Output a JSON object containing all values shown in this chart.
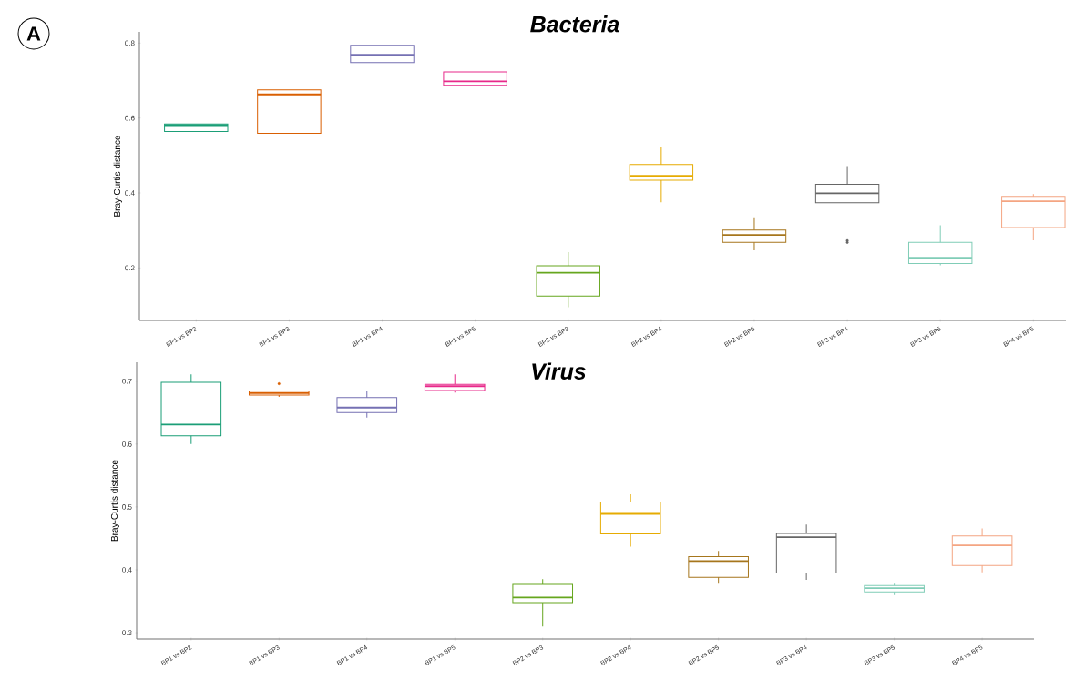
{
  "chart_data": [
    {
      "type": "box",
      "title": "Bacteria",
      "ylabel": "Bray-Curtis distance",
      "annotations": [
        "A"
      ],
      "categories": [
        "BP1 vs BP2",
        "BP1 vs BP3",
        "BP1 vs BP4",
        "BP1 vs BP5",
        "BP2 vs BP3",
        "BP2 vs BP4",
        "BP2 vs BP5",
        "BP3 vs BP4",
        "BP3 vs BP5",
        "BP4 vs BP5"
      ],
      "colors": [
        "#1b9e77",
        "#d95f02",
        "#7570b3",
        "#e7298a",
        "#66a61e",
        "#e6ab02",
        "#a6761d",
        "#666666",
        "#80cdb7",
        "#f4a582"
      ],
      "boxes": [
        {
          "low": 0.564,
          "q1": 0.564,
          "median": 0.581,
          "q3": 0.584,
          "high": 0.584
        },
        {
          "low": 0.559,
          "q1": 0.559,
          "median": 0.663,
          "q3": 0.675,
          "high": 0.675
        },
        {
          "low": 0.748,
          "q1": 0.748,
          "median": 0.769,
          "q3": 0.794,
          "high": 0.794
        },
        {
          "low": 0.687,
          "q1": 0.687,
          "median": 0.698,
          "q3": 0.723,
          "high": 0.723
        },
        {
          "low": 0.095,
          "q1": 0.125,
          "median": 0.187,
          "q3": 0.206,
          "high": 0.242
        },
        {
          "low": 0.375,
          "q1": 0.434,
          "median": 0.446,
          "q3": 0.476,
          "high": 0.523
        },
        {
          "low": 0.247,
          "q1": 0.268,
          "median": 0.288,
          "q3": 0.301,
          "high": 0.335
        },
        {
          "low": 0.374,
          "q1": 0.374,
          "median": 0.399,
          "q3": 0.423,
          "high": 0.472,
          "outliers": [
            0.273,
            0.268
          ]
        },
        {
          "low": 0.207,
          "q1": 0.212,
          "median": 0.227,
          "q3": 0.268,
          "high": 0.314
        },
        {
          "low": 0.274,
          "q1": 0.308,
          "median": 0.378,
          "q3": 0.391,
          "high": 0.397
        }
      ],
      "ylim": [
        0.06,
        0.83
      ],
      "yticks": [
        0.2,
        0.4,
        0.6,
        0.8
      ]
    },
    {
      "type": "box",
      "title": "Virus",
      "ylabel": "Bray-Curtis distance",
      "categories": [
        "BP1 vs BP2",
        "BP1 vs BP3",
        "BP1 vs BP4",
        "BP1 vs BP5",
        "BP2 vs BP3",
        "BP2 vs BP4",
        "BP2 vs BP5",
        "BP3 vs BP4",
        "BP3 vs BP5",
        "BP4 vs BP5"
      ],
      "colors": [
        "#1b9e77",
        "#d95f02",
        "#7570b3",
        "#e7298a",
        "#66a61e",
        "#e6ab02",
        "#a6761d",
        "#666666",
        "#80cdb7",
        "#f4a582"
      ],
      "boxes": [
        {
          "low": 0.6,
          "q1": 0.613,
          "median": 0.631,
          "q3": 0.698,
          "high": 0.711
        },
        {
          "low": 0.675,
          "q1": 0.678,
          "median": 0.681,
          "q3": 0.684,
          "high": 0.684,
          "outliers": [
            0.696
          ]
        },
        {
          "low": 0.642,
          "q1": 0.65,
          "median": 0.658,
          "q3": 0.674,
          "high": 0.684
        },
        {
          "low": 0.682,
          "q1": 0.685,
          "median": 0.692,
          "q3": 0.695,
          "high": 0.711
        },
        {
          "low": 0.31,
          "q1": 0.348,
          "median": 0.356,
          "q3": 0.377,
          "high": 0.385
        },
        {
          "low": 0.437,
          "q1": 0.457,
          "median": 0.489,
          "q3": 0.508,
          "high": 0.52
        },
        {
          "low": 0.378,
          "q1": 0.388,
          "median": 0.414,
          "q3": 0.421,
          "high": 0.43
        },
        {
          "low": 0.384,
          "q1": 0.395,
          "median": 0.452,
          "q3": 0.458,
          "high": 0.472
        },
        {
          "low": 0.36,
          "q1": 0.365,
          "median": 0.371,
          "q3": 0.375,
          "high": 0.378
        },
        {
          "low": 0.396,
          "q1": 0.407,
          "median": 0.439,
          "q3": 0.454,
          "high": 0.466
        }
      ],
      "ylim": [
        0.29,
        0.73
      ],
      "yticks": [
        0.3,
        0.4,
        0.5,
        0.6,
        0.7
      ]
    }
  ]
}
